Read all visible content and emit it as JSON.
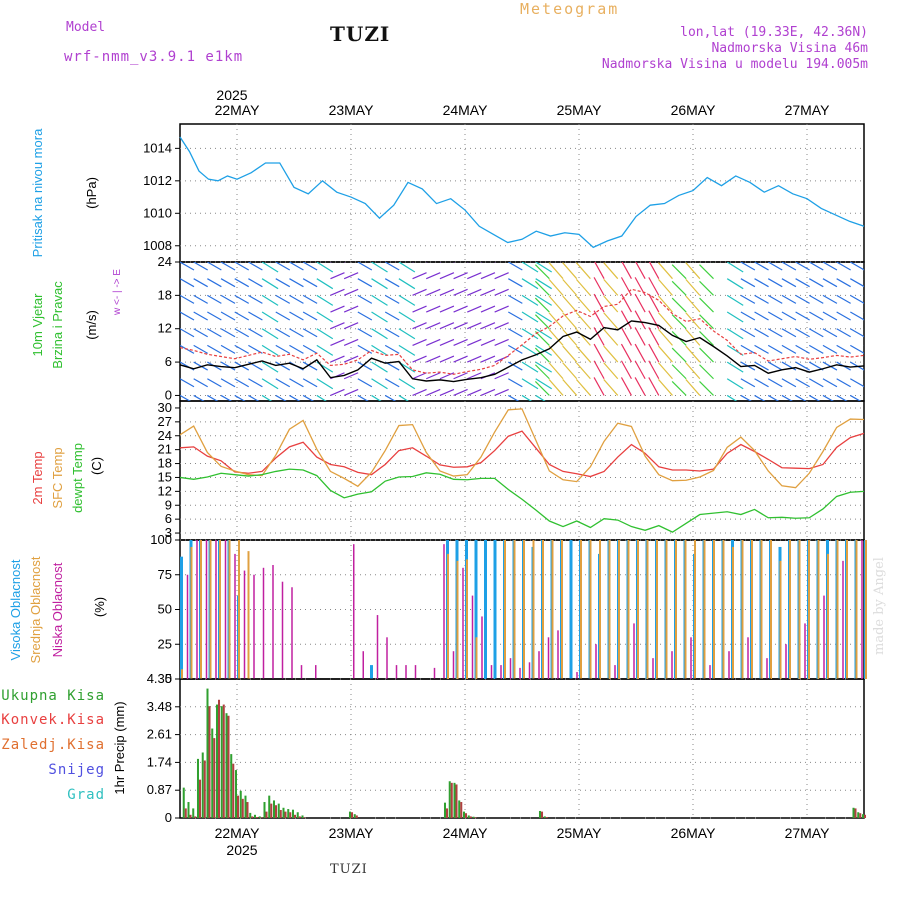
{
  "header": {
    "model_label": "Model",
    "model_value": "wrf-nmm_v3.9.1 e1km",
    "title": "TUZI",
    "chart_title": "Meteogram",
    "lonlat": "lon,lat (19.33E, 42.36N)",
    "altitude": "Nadmorska Visina 46m",
    "model_altitude": "Nadmorska Visina u modelu 194.005m"
  },
  "footer": {
    "station": "TUZI",
    "credit": "made by Angel"
  },
  "colors": {
    "pressure": "#1ea0e6",
    "temp2m": "#e84040",
    "sfc_temp": "#e0a040",
    "dewpt": "#30c030",
    "cloud_high": "#1ea0e6",
    "cloud_mid": "#e0a040",
    "cloud_low": "#c020a0",
    "precip_total": "#30a030",
    "precip_conv": "#e84040",
    "precip_grid": "#e07030",
    "snow": "#5050e0",
    "hail": "#30c0c0"
  },
  "chart_data": [
    {
      "type": "line",
      "panel": "pressure",
      "ylabel_main": "Pritisak na nivou mora",
      "ylabel_unit": "(hPa)",
      "ylim": [
        1007,
        1015.5
      ],
      "yticks": [
        "1008",
        "1010",
        "1012",
        "1014"
      ],
      "x_hours": [
        0,
        2,
        4,
        6,
        8,
        10,
        12,
        15,
        18,
        21,
        24,
        27,
        30,
        33,
        36,
        39,
        42,
        45,
        48,
        51,
        54,
        57,
        60,
        63,
        66,
        69,
        72,
        75,
        78,
        81,
        84,
        87,
        90,
        93,
        96,
        99,
        102,
        105,
        108,
        111,
        114,
        117,
        120,
        123,
        126,
        129,
        132,
        135,
        138,
        141,
        144
      ],
      "values": [
        1014.7,
        1013.8,
        1012.6,
        1012.1,
        1012.0,
        1012.3,
        1012.1,
        1012.5,
        1013.1,
        1013.1,
        1011.6,
        1011.2,
        1012.0,
        1011.3,
        1011.0,
        1010.6,
        1009.7,
        1010.5,
        1011.9,
        1011.5,
        1010.6,
        1010.9,
        1010.2,
        1009.2,
        1008.7,
        1008.2,
        1008.4,
        1008.9,
        1008.6,
        1008.8,
        1008.7,
        1007.9,
        1008.3,
        1008.6,
        1009.8,
        1010.5,
        1010.6,
        1011.1,
        1011.4,
        1012.2,
        1011.7,
        1012.3,
        1011.9,
        1011.3,
        1011.7,
        1011.2,
        1010.9,
        1010.3,
        1009.9,
        1009.5,
        1009.2
      ]
    },
    {
      "type": "line",
      "panel": "wind",
      "ylabel_main": "10m Vjetar",
      "ylabel_sub": "Brzina i Pravac",
      "ylabel_unit": "(m/s)",
      "compass_hint": "w <- | -> E",
      "ylim": [
        -1,
        24
      ],
      "yticks": [
        "0",
        "6",
        "12",
        "18",
        "24"
      ],
      "series": [
        {
          "values": [
            5.5,
            4.8,
            5.5,
            5.2,
            5.0,
            5.6,
            6.2,
            5.4,
            5.8,
            4.8,
            6.4,
            3.2,
            3.6,
            4.6,
            6.7,
            5.8,
            6.1,
            3.0,
            2.6,
            2.8,
            2.5,
            2.9,
            3.2,
            3.8,
            5.1,
            6.4,
            7.3,
            8.4,
            10.6,
            11.4,
            10.1,
            12.2,
            11.8,
            13.4,
            13.1,
            12.6,
            10.8,
            9.7,
            10.4,
            8.8,
            7.1,
            5.2,
            5.4,
            4.0,
            4.6,
            5.0,
            4.2,
            4.8,
            5.5,
            5.1,
            5.3
          ]
        },
        {
          "values": [
            8.6,
            8.1,
            7.4,
            7.0,
            6.6,
            7.2,
            7.8,
            7.0,
            7.4,
            6.4,
            7.6,
            5.4,
            5.6,
            6.4,
            8.1,
            7.2,
            7.4,
            4.6,
            4.0,
            4.2,
            3.8,
            4.3,
            4.7,
            5.4,
            7.2,
            9.1,
            11.1,
            12.4,
            14.3,
            15.3,
            14.2,
            16.0,
            16.4,
            19.1,
            18.5,
            17.1,
            14.7,
            13.3,
            13.8,
            11.6,
            9.9,
            7.4,
            7.7,
            6.2,
            6.6,
            7.0,
            6.5,
            6.8,
            7.2,
            6.9,
            7.2
          ]
        }
      ]
    },
    {
      "type": "line",
      "panel": "temperature",
      "ylabel_series": [
        "2m Temp",
        "SFC Temp",
        "dewpt Temp"
      ],
      "ylabel_unit": "(C)",
      "ylim": [
        1.5,
        31.5
      ],
      "yticks": [
        "3",
        "6",
        "9",
        "12",
        "15",
        "18",
        "21",
        "24",
        "27",
        "30"
      ],
      "series": [
        {
          "name": "2m Temp",
          "values": [
            21.4,
            21.6,
            19.6,
            18.6,
            16.2,
            15.9,
            16.3,
            19.2,
            21.6,
            22.6,
            19.4,
            17.8,
            17.3,
            16.1,
            15.6,
            17.8,
            20.8,
            21.4,
            19.6,
            17.7,
            17.2,
            17.3,
            18.2,
            20.8,
            23.9,
            25.0,
            21.4,
            17.8,
            16.3,
            15.8,
            15.2,
            16.3,
            19.4,
            22.1,
            20.2,
            17.3,
            16.6,
            16.6,
            16.4,
            16.8,
            20.2,
            22.1,
            20.6,
            18.9,
            17.1,
            17.0,
            16.9,
            17.8,
            21.5,
            23.6,
            24.5
          ]
        },
        {
          "name": "SFC Temp",
          "values": [
            24.2,
            26.1,
            20.4,
            17.4,
            16.4,
            15.6,
            15.4,
            19.8,
            25.4,
            27.3,
            21.1,
            16.3,
            14.8,
            13.1,
            16.1,
            20.8,
            26.2,
            26.4,
            20.4,
            16.4,
            15.3,
            15.6,
            19.4,
            24.8,
            29.6,
            29.8,
            23.1,
            16.4,
            14.5,
            14.1,
            17.3,
            22.8,
            26.7,
            26.0,
            19.6,
            15.6,
            14.3,
            14.4,
            15.1,
            16.5,
            21.5,
            23.7,
            20.8,
            16.4,
            13.2,
            12.8,
            15.9,
            20.6,
            25.8,
            27.6,
            27.5
          ]
        },
        {
          "name": "dewpt Temp",
          "values": [
            15.0,
            14.6,
            15.1,
            15.9,
            15.6,
            15.3,
            15.6,
            16.3,
            16.8,
            16.6,
            15.4,
            12.2,
            10.6,
            11.4,
            11.9,
            14.2,
            15.1,
            15.2,
            16.0,
            15.7,
            14.6,
            14.5,
            14.8,
            14.8,
            12.4,
            10.3,
            8.0,
            5.6,
            4.4,
            5.6,
            4.2,
            6.1,
            5.8,
            4.4,
            3.6,
            4.6,
            3.2,
            5.1,
            7.0,
            7.3,
            7.6,
            7.0,
            8.1,
            6.3,
            6.4,
            6.2,
            6.3,
            8.2,
            10.9,
            11.8,
            12.0
          ]
        }
      ]
    },
    {
      "type": "bar",
      "panel": "clouds",
      "ylabel_series": [
        "Visoka Oblacnost",
        "Srednja Oblacnost",
        "Niska Oblacnost"
      ],
      "ylabel_unit": "(%)",
      "ylim": [
        0,
        100
      ],
      "yticks": [
        "0",
        "25",
        "50",
        "75",
        "100"
      ],
      "series": [
        {
          "name": "Visoka Oblacnost",
          "hours": [
            0,
            2,
            4,
            6,
            8,
            10,
            12,
            40,
            56,
            58,
            60,
            62,
            64,
            66,
            68,
            70,
            72,
            74,
            76,
            78,
            80,
            82,
            84,
            86,
            88,
            90,
            92,
            94,
            96,
            98,
            100,
            102,
            104,
            106,
            108,
            110,
            112,
            114,
            116,
            118,
            120,
            122,
            124,
            126,
            128,
            130,
            132,
            134,
            136,
            138,
            140,
            142,
            144
          ],
          "values": [
            88,
            100,
            100,
            100,
            100,
            100,
            60,
            10,
            100,
            100,
            100,
            100,
            100,
            100,
            100,
            100,
            100,
            95,
            100,
            100,
            100,
            100,
            100,
            100,
            90,
            100,
            100,
            100,
            100,
            100,
            100,
            100,
            100,
            100,
            90,
            100,
            100,
            100,
            100,
            100,
            100,
            100,
            100,
            95,
            100,
            100,
            100,
            100,
            100,
            100,
            100,
            100,
            100
          ]
        },
        {
          "name": "Srednja Oblacnost",
          "hours": [
            0,
            2,
            4,
            6,
            8,
            10,
            12,
            14,
            56,
            58,
            60,
            62,
            68,
            70,
            72,
            74,
            76,
            78,
            80,
            84,
            86,
            88,
            90,
            92,
            94,
            96,
            98,
            100,
            102,
            104,
            106,
            108,
            110,
            112,
            114,
            116,
            118,
            120,
            122,
            124,
            126,
            128,
            130,
            132,
            134,
            136,
            138,
            140,
            142,
            144
          ],
          "values": [
            7,
            95,
            100,
            100,
            100,
            100,
            100,
            92,
            90,
            85,
            86,
            30,
            100,
            100,
            100,
            100,
            100,
            100,
            100,
            100,
            100,
            100,
            100,
            100,
            100,
            100,
            100,
            100,
            100,
            100,
            100,
            100,
            100,
            100,
            100,
            95,
            100,
            100,
            100,
            100,
            85,
            100,
            100,
            100,
            100,
            90,
            100,
            100,
            100,
            100
          ]
        },
        {
          "name": "Niska Oblacnost",
          "hours": [
            1,
            3,
            5,
            7,
            9,
            11,
            13,
            15,
            17,
            19,
            21,
            23,
            25,
            28,
            36,
            38,
            41,
            43,
            45,
            47,
            49,
            53,
            55,
            57,
            59,
            61,
            63,
            65,
            67,
            69,
            71,
            73,
            75,
            77,
            79,
            83,
            87,
            91,
            95,
            99,
            103,
            107,
            111,
            115,
            119,
            123,
            127,
            131,
            135,
            139,
            143
          ],
          "values": [
            75,
            100,
            100,
            100,
            100,
            90,
            78,
            75,
            80,
            82,
            70,
            66,
            10,
            10,
            97,
            20,
            46,
            30,
            10,
            10,
            10,
            8,
            97,
            20,
            80,
            60,
            45,
            10,
            10,
            15,
            8,
            12,
            20,
            30,
            35,
            5,
            25,
            10,
            40,
            15,
            20,
            30,
            10,
            20,
            30,
            15,
            25,
            40,
            60,
            85,
            100
          ]
        }
      ]
    },
    {
      "type": "bar",
      "panel": "precipitation",
      "ylabel_unit": "1hr Precip (mm)",
      "legend": [
        "Ukupna Kisa",
        "Konvek.Kisa",
        "Zaledj.Kisa",
        "Snijeg",
        "Grad"
      ],
      "ylim": [
        0,
        4.35
      ],
      "yticks": [
        "0",
        "0.87",
        "1.74",
        "2.61",
        "3.48",
        "4.35"
      ],
      "hours": [
        1,
        2,
        3,
        4,
        5,
        6,
        7,
        8,
        9,
        10,
        11,
        12,
        13,
        14,
        15,
        16,
        17,
        18,
        19,
        20,
        21,
        22,
        23,
        24,
        25,
        26,
        36,
        37,
        56,
        57,
        58,
        59,
        60,
        61,
        62,
        76,
        77,
        142,
        143,
        144
      ],
      "series": [
        {
          "name": "Ukupna Kisa",
          "values": [
            0.95,
            0.5,
            0.3,
            1.85,
            2.05,
            4.05,
            2.8,
            3.55,
            3.5,
            3.28,
            2.0,
            1.5,
            0.85,
            0.7,
            0.16,
            0.1,
            0.05,
            0.5,
            0.7,
            0.55,
            0.45,
            0.32,
            0.28,
            0.26,
            0.18,
            0.08,
            0.2,
            0.12,
            0.48,
            1.15,
            1.1,
            0.55,
            0.2,
            0.08,
            0.04,
            0.22,
            0.05,
            0.32,
            0.18,
            0.12
          ]
        },
        {
          "name": "Konvek.Kisa",
          "values": [
            0.3,
            0.1,
            0.05,
            1.2,
            1.8,
            3.5,
            2.5,
            3.7,
            3.55,
            3.2,
            1.7,
            0.7,
            0.6,
            0.5,
            0.05,
            0.03,
            0.02,
            0.2,
            0.45,
            0.4,
            0.25,
            0.2,
            0.18,
            0.1,
            0.05,
            0.02,
            0.18,
            0.08,
            0.3,
            1.1,
            1.05,
            0.5,
            0.15,
            0.05,
            0.02,
            0.2,
            0.03,
            0.3,
            0.15,
            0.1
          ]
        }
      ]
    }
  ],
  "time_axis": {
    "year": "2025",
    "day_labels": [
      "22MAY",
      "23MAY",
      "24MAY",
      "25MAY",
      "26MAY",
      "27MAY"
    ],
    "day_hours": [
      12,
      36,
      60,
      84,
      108,
      132
    ]
  }
}
